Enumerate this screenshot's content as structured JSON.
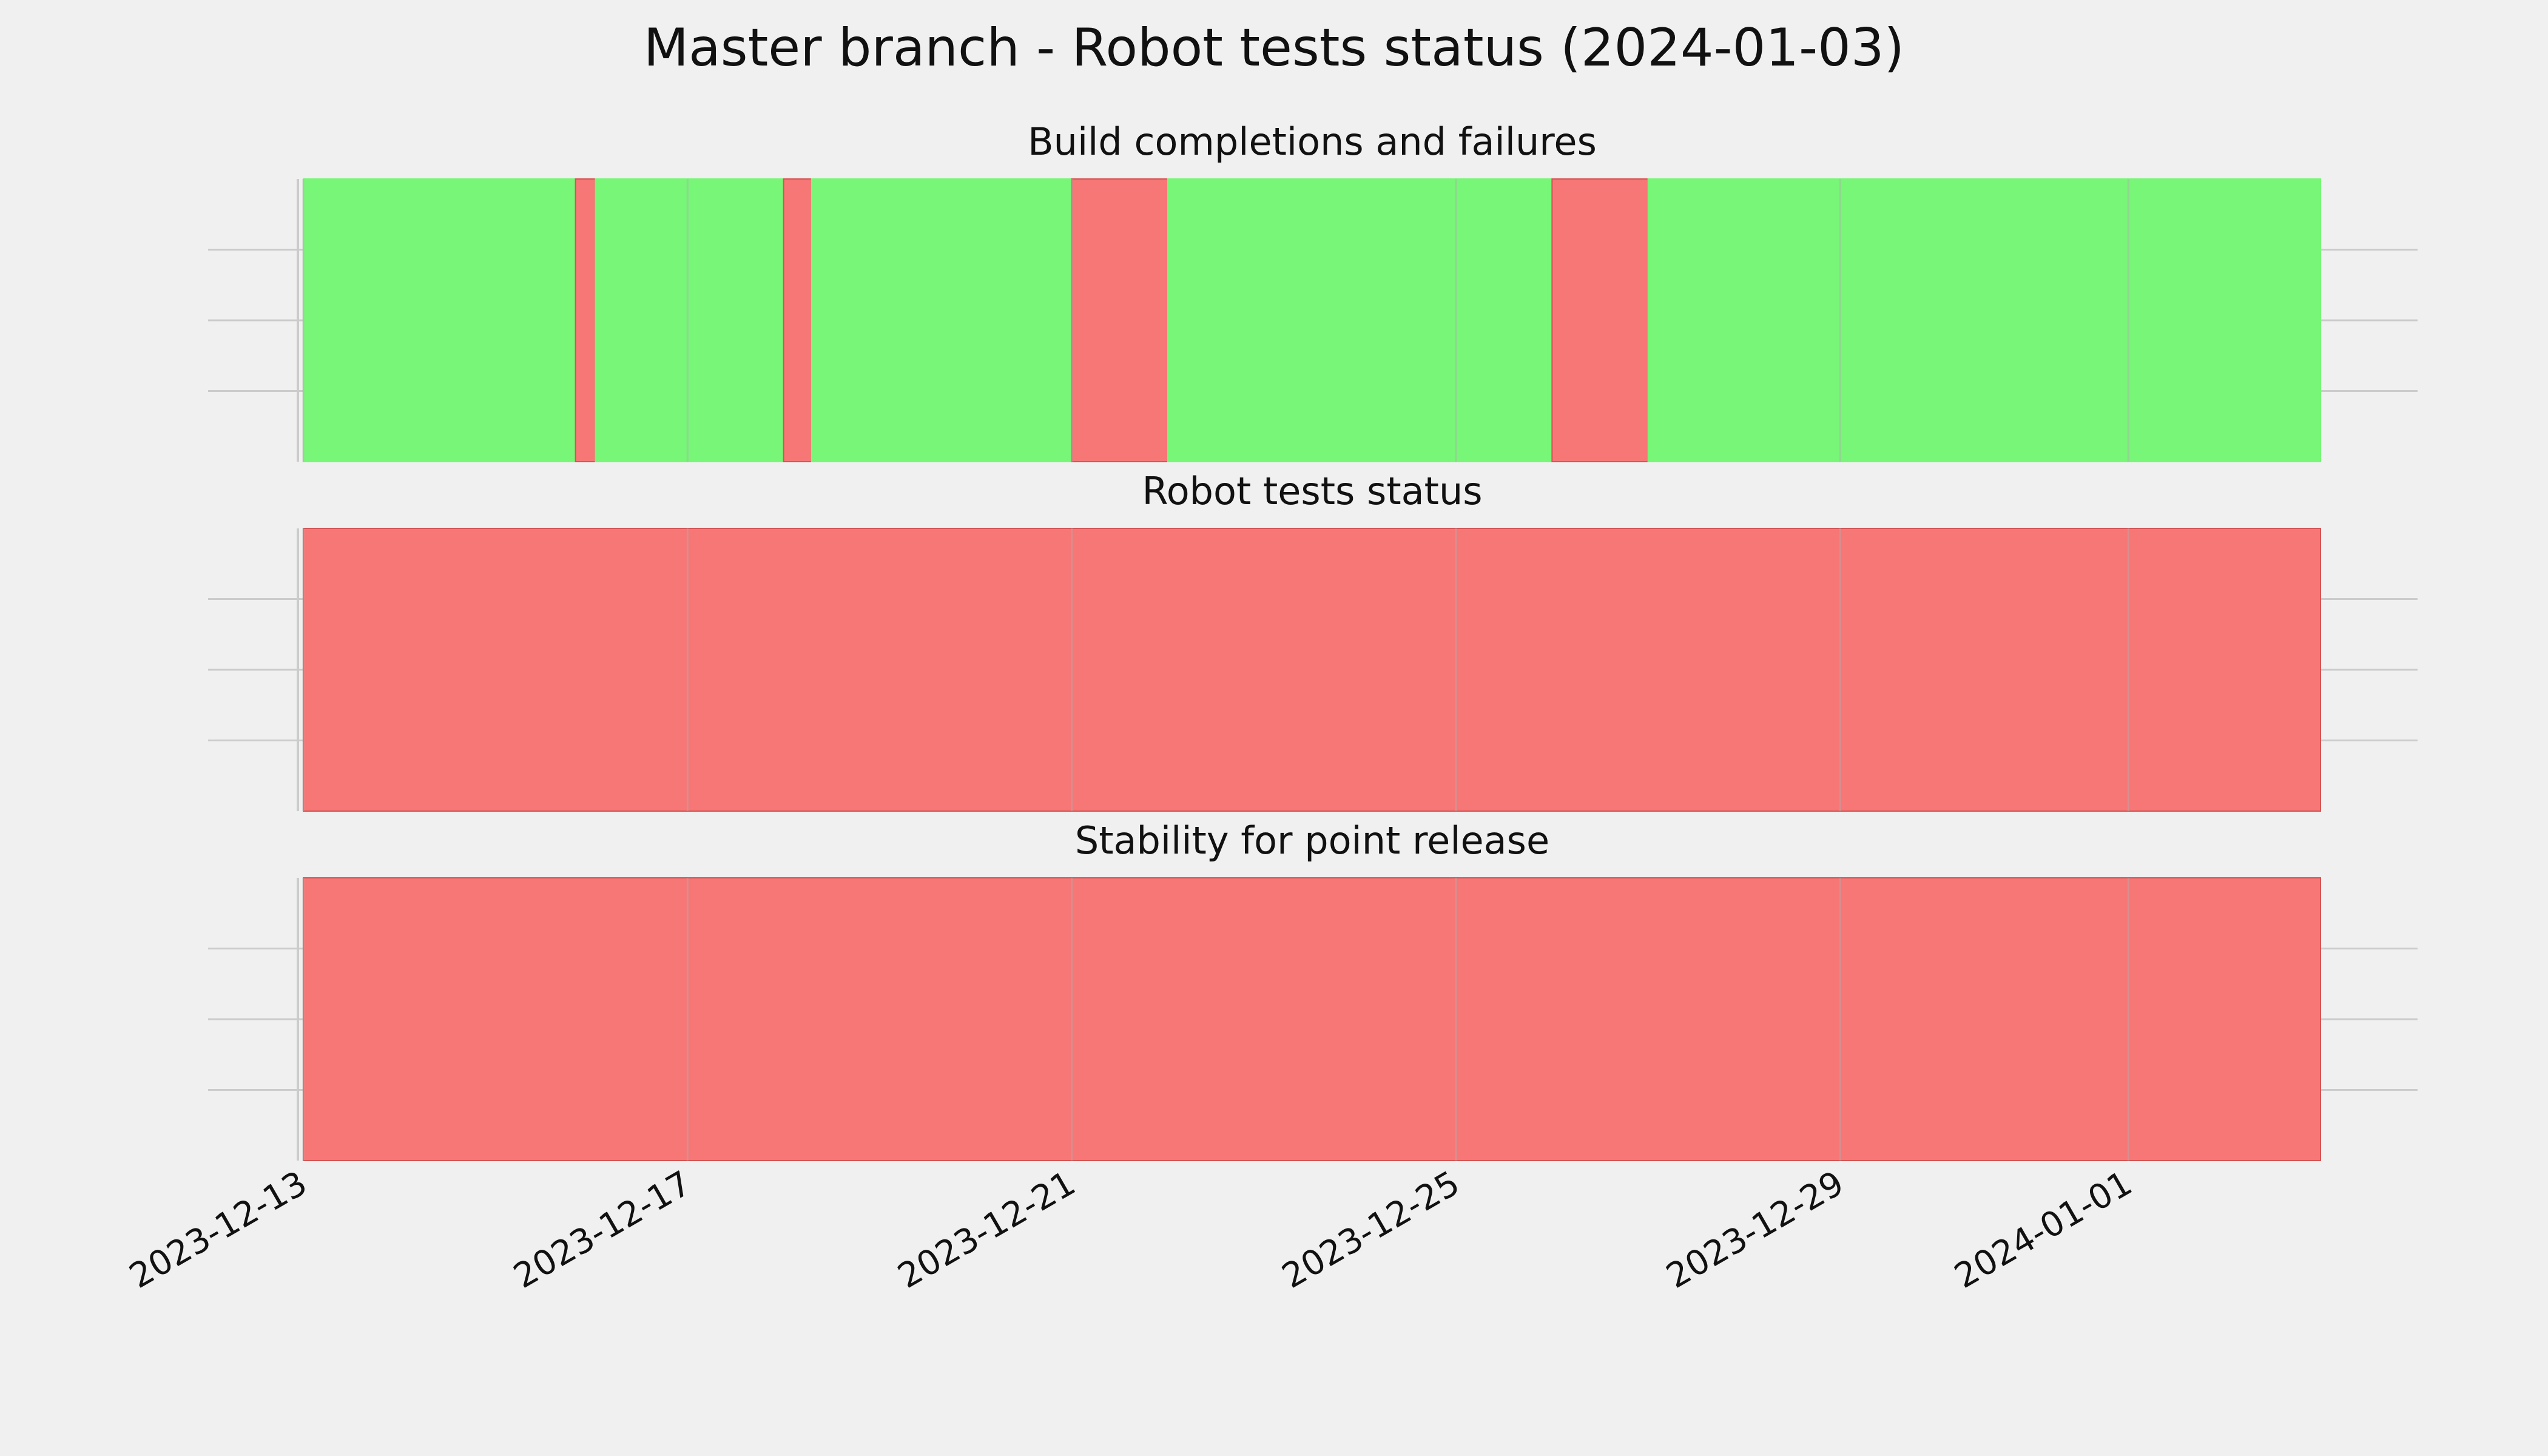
{
  "chart_data": {
    "type": "timeline",
    "title": "Master branch - Robot tests status (2024-01-03)",
    "x_axis": {
      "type": "date",
      "range": [
        "2023-12-13",
        "2024-01-03"
      ],
      "tick_labels": [
        "2023-12-13",
        "2023-12-17",
        "2023-12-21",
        "2023-12-25",
        "2023-12-29",
        "2024-01-01"
      ]
    },
    "grid": true,
    "colors": {
      "pass": "#77f677",
      "fail": "#f77676",
      "background": "#f0f0f0"
    },
    "panels": [
      {
        "title": "Build completions and failures",
        "segments": [
          {
            "start": "2023-12-13",
            "end": "2023-12-15 20:00",
            "status": "pass"
          },
          {
            "start": "2023-12-15 20:00",
            "end": "2023-12-16 01:00",
            "status": "fail"
          },
          {
            "start": "2023-12-16 01:00",
            "end": "2023-12-18",
            "status": "pass"
          },
          {
            "start": "2023-12-18",
            "end": "2023-12-18 07:00",
            "status": "fail"
          },
          {
            "start": "2023-12-18 07:00",
            "end": "2023-12-21",
            "status": "pass"
          },
          {
            "start": "2023-12-21",
            "end": "2023-12-22",
            "status": "fail"
          },
          {
            "start": "2023-12-22",
            "end": "2023-12-26",
            "status": "pass"
          },
          {
            "start": "2023-12-26",
            "end": "2023-12-27",
            "status": "fail"
          },
          {
            "start": "2023-12-27",
            "end": "2024-01-03",
            "status": "pass"
          }
        ]
      },
      {
        "title": "Robot tests status",
        "segments": [
          {
            "start": "2023-12-13",
            "end": "2024-01-03",
            "status": "fail"
          }
        ]
      },
      {
        "title": "Stability for point release",
        "segments": [
          {
            "start": "2023-12-13",
            "end": "2024-01-03",
            "status": "fail"
          }
        ]
      }
    ]
  }
}
